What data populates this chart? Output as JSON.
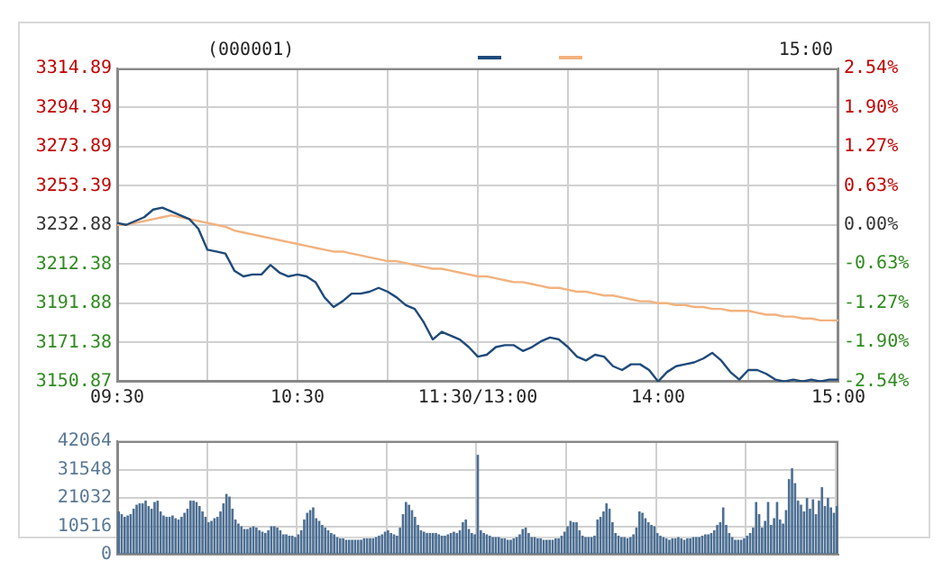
{
  "chart_data": [
    {
      "type": "line",
      "annotations": [
        "(000001)",
        "15:00"
      ],
      "categories": [
        "09:30",
        null,
        null,
        null,
        null,
        null,
        null,
        null,
        null,
        null,
        null,
        null,
        null,
        null,
        null,
        null,
        null,
        null,
        null,
        null,
        "10:30",
        null,
        null,
        null,
        null,
        null,
        null,
        null,
        null,
        null,
        null,
        null,
        null,
        null,
        null,
        null,
        null,
        null,
        null,
        null,
        "11:30/13:00",
        null,
        null,
        null,
        null,
        null,
        null,
        null,
        null,
        null,
        null,
        null,
        null,
        null,
        null,
        null,
        null,
        null,
        null,
        null,
        "14:00",
        null,
        null,
        null,
        null,
        null,
        null,
        null,
        null,
        null,
        null,
        null,
        null,
        null,
        null,
        null,
        null,
        null,
        null,
        null,
        "15:00"
      ],
      "series": [
        {
          "color": "#1f4a7a",
          "values": [
            3234,
            3233,
            3235,
            3237,
            3241,
            3242,
            3240,
            3238,
            3236,
            3231,
            3220,
            3219,
            3218,
            3209,
            3206,
            3207,
            3207,
            3212,
            3208,
            3206,
            3207,
            3206,
            3203,
            3195,
            3190,
            3193,
            3197,
            3197,
            3198,
            3200,
            3198,
            3195,
            3191,
            3189,
            3182,
            3173,
            3177,
            3175,
            3173,
            3169,
            3164,
            3165,
            3169,
            3170,
            3170,
            3167,
            3169,
            3172,
            3174,
            3173,
            3169,
            3164,
            3162,
            3165,
            3164,
            3159,
            3157,
            3160,
            3160,
            3157,
            3151,
            3156,
            3159,
            3160,
            3161,
            3163,
            3166,
            3162,
            3156,
            3152,
            3157,
            3157,
            3155,
            3152,
            3151,
            3152,
            3151,
            3152,
            3151,
            3152,
            3152
          ]
        },
        {
          "color": "#f2b27e",
          "values": [
            3233,
            3233,
            3234,
            3235,
            3236,
            3237,
            3238,
            3237,
            3236,
            3235,
            3234,
            3233,
            3232,
            3230,
            3229,
            3228,
            3227,
            3226,
            3225,
            3224,
            3223,
            3222,
            3221,
            3220,
            3219,
            3219,
            3218,
            3217,
            3216,
            3215,
            3214,
            3214,
            3213,
            3212,
            3211,
            3210,
            3210,
            3209,
            3208,
            3207,
            3206,
            3206,
            3205,
            3204,
            3203,
            3203,
            3202,
            3201,
            3200,
            3200,
            3199,
            3198,
            3198,
            3197,
            3196,
            3196,
            3195,
            3194,
            3193,
            3193,
            3192,
            3192,
            3191,
            3191,
            3190,
            3190,
            3189,
            3189,
            3188,
            3188,
            3188,
            3187,
            3186,
            3186,
            3185,
            3185,
            3184,
            3184,
            3183,
            3183,
            3183
          ]
        }
      ],
      "ylim": [
        3150.87,
        3314.89
      ],
      "yticks": [
        3150.87,
        3171.38,
        3191.88,
        3212.38,
        3232.88,
        3253.39,
        3273.89,
        3294.39,
        3314.89
      ],
      "y2lim": [
        -2.54,
        2.54
      ],
      "y2ticks": [
        {
          "value": -2.54,
          "label": "-2.54%"
        },
        {
          "value": -1.9,
          "label": "-1.90%"
        },
        {
          "value": -1.27,
          "label": "-1.27%"
        },
        {
          "value": -0.63,
          "label": "-0.63%"
        },
        {
          "value": 0,
          "label": "0.00%"
        },
        {
          "value": 0.63,
          "label": "0.63%"
        },
        {
          "value": 1.27,
          "label": "1.27%"
        },
        {
          "value": 1.9,
          "label": "1.90%"
        },
        {
          "value": 2.54,
          "label": "2.54%"
        }
      ],
      "grid": true,
      "marker": "none"
    },
    {
      "type": "bar",
      "color": "#4d6f93",
      "categories": [
        null,
        null,
        null,
        null,
        null,
        null,
        null,
        null,
        null,
        null,
        null,
        null,
        null,
        null,
        null,
        null,
        null,
        null,
        null,
        null,
        null,
        null,
        null,
        null,
        null,
        null,
        null,
        null,
        null,
        null,
        null,
        null,
        null,
        null,
        null,
        null,
        null,
        null,
        null,
        null,
        null,
        null,
        null,
        null,
        null,
        null,
        null,
        null,
        null,
        null,
        null,
        null,
        null,
        null,
        null,
        null,
        null,
        null,
        null,
        null,
        null,
        null,
        null,
        null,
        null,
        null,
        null,
        null,
        null,
        null,
        null,
        null,
        null,
        null,
        null,
        null,
        null,
        null,
        null,
        null,
        null,
        null,
        null,
        null,
        null,
        null,
        null,
        null,
        null,
        null,
        null,
        null,
        null,
        null,
        null,
        null,
        null,
        null,
        null,
        null,
        null,
        null,
        null,
        null,
        null,
        null,
        null,
        null,
        null,
        null,
        null,
        null,
        null,
        null,
        null,
        null,
        null,
        null,
        null,
        null,
        null,
        null,
        null,
        null,
        null,
        null,
        null,
        null,
        null,
        null,
        null,
        null,
        null,
        null,
        null,
        null,
        null,
        null,
        null,
        null,
        null,
        null,
        null,
        null,
        null,
        null,
        null,
        null,
        null,
        null,
        null,
        null,
        null,
        null,
        null,
        null,
        null,
        null,
        null,
        null,
        null,
        null,
        null,
        null,
        null,
        null,
        null,
        null,
        null,
        null,
        null,
        null,
        null,
        null,
        null,
        null,
        null,
        null,
        null,
        null,
        null,
        null,
        null,
        null,
        null,
        null,
        null,
        null,
        null,
        null,
        null,
        null,
        null,
        null,
        null,
        null,
        null,
        null,
        null,
        null,
        null,
        null,
        null,
        null,
        null,
        null,
        null,
        null,
        null,
        null,
        null,
        null,
        null,
        null,
        null,
        null,
        null,
        null,
        null,
        null,
        null,
        null,
        null,
        null,
        null,
        null,
        null,
        null,
        null,
        null,
        null,
        null,
        null,
        null,
        null,
        null,
        null,
        null,
        null,
        null,
        null
      ],
      "values": [
        16000,
        15000,
        14000,
        14500,
        15000,
        17000,
        18500,
        19000,
        19000,
        20000,
        18000,
        17000,
        19500,
        20000,
        16000,
        14500,
        14000,
        14000,
        14500,
        13500,
        13000,
        14000,
        15500,
        17000,
        20000,
        20000,
        19500,
        18000,
        16000,
        14000,
        12000,
        12500,
        13500,
        14000,
        16000,
        19000,
        22500,
        21500,
        17000,
        13000,
        11500,
        10500,
        9500,
        9500,
        10000,
        10500,
        10000,
        9000,
        8500,
        8000,
        9000,
        10500,
        10500,
        10000,
        9000,
        7500,
        7500,
        7000,
        7000,
        6500,
        7500,
        9000,
        13000,
        15500,
        16500,
        17500,
        13500,
        12500,
        11000,
        10000,
        9000,
        8000,
        7500,
        6500,
        6000,
        6000,
        5500,
        5500,
        5500,
        5500,
        5500,
        5500,
        6000,
        6000,
        6000,
        6000,
        6500,
        7000,
        7500,
        8500,
        9000,
        8000,
        7500,
        7000,
        10000,
        15000,
        19500,
        18500,
        16500,
        14000,
        11000,
        9000,
        8500,
        8000,
        8000,
        8000,
        8000,
        7500,
        7000,
        7000,
        7500,
        8000,
        8500,
        8000,
        9000,
        12000,
        13000,
        9500,
        8000,
        7500,
        37000,
        9000,
        8000,
        7500,
        7000,
        6500,
        6500,
        6500,
        6000,
        6000,
        5500,
        5500,
        6000,
        6500,
        7500,
        9500,
        10000,
        8000,
        6500,
        6500,
        6000,
        6000,
        5500,
        5500,
        5500,
        5500,
        6000,
        6000,
        7000,
        8500,
        10500,
        12500,
        12000,
        12000,
        9000,
        7000,
        6500,
        6500,
        6500,
        7000,
        13000,
        14000,
        16000,
        19000,
        17000,
        12000,
        8000,
        7000,
        6500,
        6500,
        6000,
        6500,
        7500,
        10000,
        16000,
        15500,
        13500,
        12000,
        11000,
        10500,
        8000,
        7000,
        6500,
        6000,
        5500,
        6000,
        6000,
        6500,
        6000,
        5500,
        6000,
        6000,
        6500,
        6500,
        6500,
        7000,
        7500,
        7500,
        8000,
        9000,
        11000,
        12000,
        17500,
        11000,
        8000,
        6500,
        5500,
        5500,
        5500,
        6000,
        7000,
        8000,
        10000,
        19500,
        15000,
        10000,
        12500,
        19500,
        11000,
        13500,
        19500,
        13000,
        11500,
        16500,
        28000,
        32000,
        26500,
        20000,
        18500,
        16000,
        21000,
        17000,
        20500,
        15000,
        20000,
        25000,
        18000,
        21000,
        17500,
        15500,
        18000
      ],
      "ylim": [
        0,
        42064
      ],
      "yticks": [
        0,
        10516,
        21032,
        31548,
        42064
      ],
      "grid": true,
      "tick_labels": "y"
    }
  ]
}
